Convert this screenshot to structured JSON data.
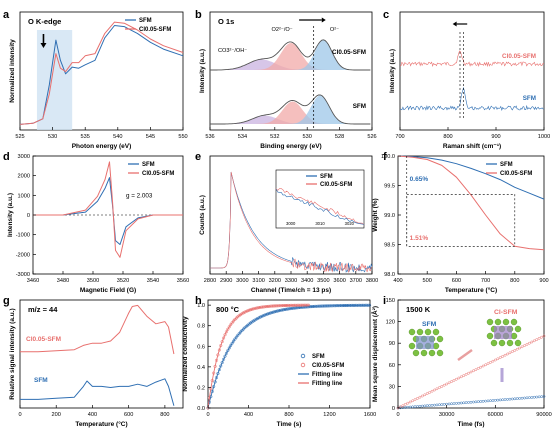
{
  "chart_data": [
    {
      "panel": "a",
      "type": "line",
      "inner_title": "O K-edge",
      "xlabel": "Photon energy (eV)",
      "ylabel": "Normalized intensity",
      "xlim": [
        525,
        550
      ],
      "xticks": [
        "525",
        "530",
        "535",
        "540",
        "545",
        "550"
      ],
      "legend_position": "top-right",
      "series": [
        {
          "name": "SFM",
          "color": "#2f6fb3",
          "x": [
            525,
            527,
            528.5,
            529.5,
            530.5,
            531.2,
            532,
            533,
            534,
            535,
            536.5,
            538,
            539.5,
            541,
            543,
            545,
            547,
            550
          ],
          "y": [
            0.05,
            0.06,
            0.1,
            0.4,
            0.8,
            0.62,
            0.5,
            0.56,
            0.55,
            0.58,
            0.62,
            0.82,
            0.93,
            0.92,
            0.86,
            0.78,
            0.72,
            0.66
          ]
        },
        {
          "name": "Cl0.05-SFM",
          "color": "#e8706e",
          "x": [
            525,
            527,
            528.5,
            529.5,
            530.5,
            531.2,
            532,
            533,
            534,
            535,
            536.5,
            538,
            539.5,
            541,
            543,
            545,
            547,
            550
          ],
          "y": [
            0.05,
            0.06,
            0.1,
            0.32,
            0.68,
            0.55,
            0.52,
            0.6,
            0.6,
            0.66,
            0.68,
            0.86,
            0.96,
            0.95,
            0.89,
            0.81,
            0.75,
            0.69
          ]
        }
      ]
    },
    {
      "panel": "b",
      "type": "line",
      "inner_title": "O 1s",
      "xlabel": "Binding energy (eV)",
      "ylabel": "Intensity (a.u.)",
      "xlim": [
        536,
        526
      ],
      "xticks": [
        "536",
        "534",
        "532",
        "530",
        "528",
        "526"
      ],
      "labels": [
        "CO3²⁻/OH⁻",
        "O2²⁻/O⁻",
        "O²⁻"
      ],
      "curves": [
        {
          "name": "Cl0.05-SFM"
        },
        {
          "name": "SFM"
        }
      ]
    },
    {
      "panel": "c",
      "type": "line",
      "xlabel": "Raman shift (cm⁻¹)",
      "ylabel": "Intensity (a.u.)",
      "xlim": [
        700,
        1000
      ],
      "xticks": [
        "700",
        "800",
        "900",
        "1000"
      ],
      "series": [
        {
          "name": "Cl0.05-SFM",
          "color": "#e8706e",
          "peak_x": 825
        },
        {
          "name": "SFM",
          "color": "#2f6fb3",
          "peak_x": 832
        }
      ]
    },
    {
      "panel": "d",
      "type": "line",
      "xlabel": "Magnetic Field (G)",
      "ylabel": "Intensity (a.u.)",
      "xlim": [
        3460,
        3560
      ],
      "ylim": [
        -3000,
        3000
      ],
      "xticks": [
        "3460",
        "3480",
        "3500",
        "3520",
        "3540",
        "3560"
      ],
      "yticks": [
        "-3000",
        "-2000",
        "-1000",
        "0",
        "1000",
        "2000",
        "3000"
      ],
      "annotation": "g = 2.003",
      "legend_position": "top-right",
      "series": [
        {
          "name": "SFM",
          "color": "#2f6fb3",
          "x": [
            3460,
            3480,
            3495,
            3503,
            3508,
            3511,
            3513,
            3515,
            3518,
            3522,
            3530,
            3540,
            3560
          ],
          "y": [
            0,
            0,
            150,
            700,
            1350,
            1900,
            500,
            -1300,
            -1500,
            -600,
            -150,
            0,
            0
          ]
        },
        {
          "name": "Cl0.05-SFM",
          "color": "#e8706e",
          "x": [
            3460,
            3480,
            3495,
            3503,
            3508,
            3511,
            3513,
            3515,
            3518,
            3522,
            3530,
            3540,
            3560
          ],
          "y": [
            0,
            0,
            250,
            950,
            1800,
            2700,
            700,
            -1800,
            -2150,
            -800,
            -200,
            0,
            0
          ]
        }
      ]
    },
    {
      "panel": "e",
      "type": "line",
      "xlabel": "Channel (Time/ch = 13 ps)",
      "ylabel": "Counts (a.u.)",
      "xlim": [
        2800,
        3800
      ],
      "xticks": [
        "2800",
        "2900",
        "3000",
        "3100",
        "3200",
        "3300",
        "3400",
        "3500",
        "3600",
        "3700",
        "3800"
      ],
      "inset_xticks": [
        "3000",
        "3010",
        "3020"
      ],
      "legend_position": "top-right",
      "series": [
        {
          "name": "SFM",
          "color": "#2f6fb3"
        },
        {
          "name": "Cl0.05-SFM",
          "color": "#e8706e"
        }
      ]
    },
    {
      "panel": "f",
      "type": "line",
      "xlabel": "Temperature (°C)",
      "ylabel": "Weight (%)",
      "xlim": [
        400,
        900
      ],
      "ylim": [
        98.0,
        100.0
      ],
      "xticks": [
        "400",
        "500",
        "600",
        "700",
        "800",
        "900"
      ],
      "yticks": [
        "98.0",
        "98.5",
        "99.0",
        "99.5",
        "100.0"
      ],
      "annotations": [
        {
          "text": "0.65%",
          "color": "#2f6fb3"
        },
        {
          "text": "1.51%",
          "color": "#e8706e"
        }
      ],
      "legend_position": "top-right",
      "series": [
        {
          "name": "SFM",
          "color": "#2f6fb3",
          "x": [
            400,
            450,
            500,
            550,
            600,
            650,
            700,
            750,
            800,
            850,
            900
          ],
          "y": [
            100,
            99.99,
            99.97,
            99.93,
            99.87,
            99.79,
            99.7,
            99.6,
            99.47,
            99.37,
            99.27
          ]
        },
        {
          "name": "Cl0.05-SFM",
          "color": "#e8706e",
          "x": [
            400,
            450,
            500,
            550,
            600,
            650,
            700,
            750,
            800,
            850,
            900
          ],
          "y": [
            100,
            99.98,
            99.94,
            99.84,
            99.64,
            99.34,
            99.0,
            98.68,
            98.47,
            98.43,
            98.41
          ]
        }
      ]
    },
    {
      "panel": "g",
      "type": "line",
      "inner_title": "m/z = 44",
      "xlabel": "Temperature (°C)",
      "ylabel": "Relative signal intensity (a.u.)",
      "xlim": [
        0,
        900
      ],
      "xticks": [
        "0",
        "200",
        "400",
        "600",
        "800"
      ],
      "series": [
        {
          "name": "Cl0.05-SFM",
          "color": "#e8706e",
          "x": [
            0,
            100,
            200,
            300,
            350,
            400,
            450,
            500,
            550,
            600,
            620,
            650,
            700,
            750,
            800,
            820,
            850
          ],
          "y": [
            0.52,
            0.52,
            0.53,
            0.54,
            0.58,
            0.6,
            0.6,
            0.62,
            0.7,
            0.88,
            0.94,
            0.95,
            0.85,
            0.78,
            0.8,
            0.75,
            0.5
          ]
        },
        {
          "name": "SFM",
          "color": "#2f6fb3",
          "x": [
            0,
            100,
            200,
            300,
            350,
            370,
            400,
            450,
            500,
            550,
            600,
            650,
            700,
            750,
            800,
            820,
            850
          ],
          "y": [
            0.08,
            0.08,
            0.09,
            0.1,
            0.2,
            0.25,
            0.2,
            0.2,
            0.19,
            0.2,
            0.2,
            0.22,
            0.2,
            0.24,
            0.27,
            0.2,
            0.02
          ]
        }
      ]
    },
    {
      "panel": "h",
      "type": "scatter",
      "inner_title": "800 °C",
      "xlabel": "Time (s)",
      "ylabel": "Normalized conductivity",
      "xlim": [
        0,
        1600
      ],
      "ylim": [
        0,
        1.0
      ],
      "xticks": [
        "0",
        "400",
        "800",
        "1200",
        "1600"
      ],
      "yticks": [
        "0.0",
        "0.2",
        "0.4",
        "0.6",
        "0.8",
        "1.0"
      ],
      "legend_position": "center-right",
      "series": [
        {
          "name": "SFM",
          "color": "#2f6fb3",
          "kind": "points",
          "tau": 240
        },
        {
          "name": "Cl0.05-SFM",
          "color": "#e8706e",
          "kind": "points",
          "tau": 135
        },
        {
          "name": "Fitting line",
          "color": "#2f6fb3",
          "kind": "line",
          "tau": 240
        },
        {
          "name": "Fitting line",
          "color": "#e8706e",
          "kind": "line",
          "tau": 135
        }
      ]
    },
    {
      "panel": "i",
      "type": "scatter",
      "inner_title": "1500 K",
      "xlabel": "Time (fs)",
      "ylabel": "Mean square displacement (Å²)",
      "xlim": [
        0,
        90000
      ],
      "ylim": [
        0,
        150
      ],
      "xticks": [
        "0",
        "30000",
        "60000",
        "90000"
      ],
      "yticks": [
        "0",
        "30",
        "60",
        "90",
        "120",
        "150"
      ],
      "structure_labels": [
        "SFM",
        "Cl-SFM"
      ],
      "series": [
        {
          "name": "SFM",
          "color": "#2f6fb3",
          "x": [
            0,
            90000
          ],
          "y": [
            0,
            16
          ]
        },
        {
          "name": "Cl-SFM",
          "color": "#e8706e",
          "x": [
            0,
            90000
          ],
          "y": [
            0,
            100
          ]
        }
      ]
    }
  ]
}
